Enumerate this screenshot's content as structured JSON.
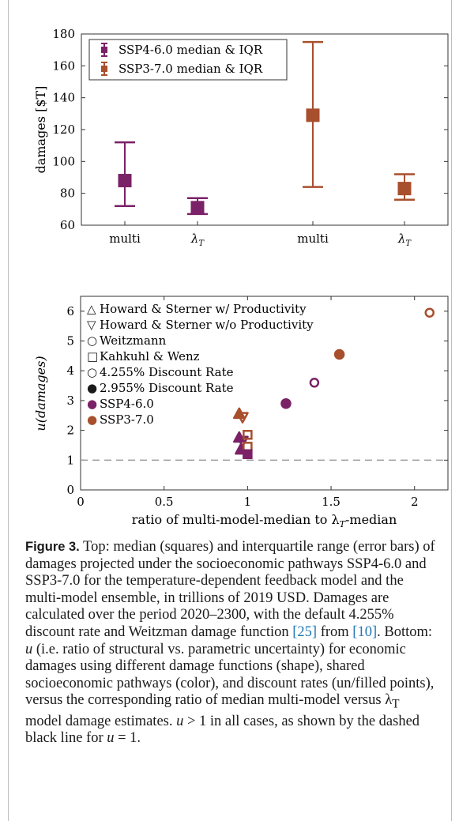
{
  "colors": {
    "ssp4": "#7b2167",
    "ssp3": "#a84f2d",
    "axis": "#333333",
    "dash": "#999999"
  },
  "chart_data": [
    {
      "type": "errorbar",
      "title": "",
      "xlabel": "",
      "ylabel": "damages [$T]",
      "ylim": [
        60,
        180
      ],
      "yticks": [
        60,
        80,
        100,
        120,
        140,
        160,
        180
      ],
      "categories": [
        "multi",
        "λ",
        "multi",
        "λ"
      ],
      "category_sub": [
        "",
        "T",
        "",
        "T"
      ],
      "legend": {
        "placement": "top-left",
        "entries": [
          "SSP4-6.0 median & IQR",
          "SSP3-7.0 median & IQR"
        ]
      },
      "series": [
        {
          "name": "SSP4-6.0 median & IQR",
          "color": "#7b2167",
          "points": [
            {
              "cat": 0,
              "median": 88,
              "q1": 72,
              "q3": 112
            },
            {
              "cat": 1,
              "median": 71,
              "q1": 67,
              "q3": 77
            }
          ]
        },
        {
          "name": "SSP3-7.0 median & IQR",
          "color": "#a84f2d",
          "points": [
            {
              "cat": 2,
              "median": 129,
              "q1": 84,
              "q3": 175
            },
            {
              "cat": 3,
              "median": 83,
              "q1": 76,
              "q3": 92
            }
          ]
        }
      ]
    },
    {
      "type": "scatter",
      "title": "",
      "xlabel_main": "ratio of multi-model-median to λ",
      "xlabel_sub": "T",
      "xlabel_tail": "-median",
      "ylabel": "u(damages)",
      "xlim": [
        0,
        2.2
      ],
      "ylim": [
        0,
        6.5
      ],
      "xticks": [
        "0",
        "0.5",
        "1",
        "1.5",
        "2"
      ],
      "xtick_values": [
        0,
        0.5,
        1,
        1.5,
        2
      ],
      "yticks": [
        "0",
        "1",
        "2",
        "3",
        "4",
        "5",
        "6"
      ],
      "ytick_values": [
        0,
        1,
        2,
        3,
        4,
        5,
        6
      ],
      "reference_line": {
        "y": 1,
        "style": "dashed"
      },
      "legend": {
        "placement": "top-left",
        "entries": [
          {
            "symbol": "△",
            "label": "Howard & Sterner w/ Productivity"
          },
          {
            "symbol": "▽",
            "label": "Howard & Sterner w/o Productivity"
          },
          {
            "symbol": "○",
            "label": "Weitzmann"
          },
          {
            "symbol": "□",
            "label": "Kahkuhl & Wenz"
          },
          {
            "symbol": "○",
            "label": "4.255% Discount Rate"
          },
          {
            "symbol": "●",
            "label": "2.955% Discount Rate"
          },
          {
            "symbol": "●",
            "label": "SSP4-6.0",
            "color": "#7b2167"
          },
          {
            "symbol": "●",
            "label": "SSP3-7.0",
            "color": "#a84f2d"
          }
        ]
      },
      "points": [
        {
          "x": 0.95,
          "y": 2.55,
          "shape": "triangle-up",
          "filled": true,
          "color": "#a84f2d"
        },
        {
          "x": 0.97,
          "y": 2.45,
          "shape": "triangle-down",
          "filled": false,
          "color": "#a84f2d"
        },
        {
          "x": 0.95,
          "y": 1.75,
          "shape": "triangle-up",
          "filled": true,
          "color": "#7b2167"
        },
        {
          "x": 0.97,
          "y": 1.65,
          "shape": "triangle-down",
          "filled": false,
          "color": "#7b2167"
        },
        {
          "x": 0.96,
          "y": 1.35,
          "shape": "triangle-up",
          "filled": true,
          "color": "#7b2167"
        },
        {
          "x": 1.0,
          "y": 1.85,
          "shape": "square",
          "filled": false,
          "color": "#a84f2d"
        },
        {
          "x": 1.0,
          "y": 1.45,
          "shape": "square",
          "filled": false,
          "color": "#a84f2d"
        },
        {
          "x": 1.0,
          "y": 1.2,
          "shape": "square",
          "filled": true,
          "color": "#7b2167"
        },
        {
          "x": 1.23,
          "y": 2.9,
          "shape": "circle",
          "filled": true,
          "color": "#7b2167"
        },
        {
          "x": 1.4,
          "y": 3.6,
          "shape": "circle",
          "filled": false,
          "color": "#7b2167"
        },
        {
          "x": 1.55,
          "y": 4.55,
          "shape": "circle",
          "filled": true,
          "color": "#a84f2d"
        },
        {
          "x": 2.09,
          "y": 5.95,
          "shape": "circle",
          "filled": false,
          "color": "#a84f2d"
        }
      ]
    }
  ],
  "caption": {
    "lead": "Figure 3.",
    "part1": " Top: median (squares) and interquartile range (error bars) of damages projected under the socioeconomic pathways SSP4-6.0 and SSP3-7.0 for the temperature-dependent feedback model and the multi-model ensemble, in trillions of 2019 USD. Damages are calculated over the period 2020–2300, with the default 4.255% discount rate and Weitzman damage function ",
    "ref1": "[25]",
    "part2": " from ",
    "ref2": "[10]",
    "part3": ". Bottom: ",
    "u1": "u",
    "part4": " (i.e. ratio of structural vs. parametric uncertainty) for economic damages using different damage functions (shape), shared socioeconomic pathways (color), and discount rates (un/filled points), versus the corresponding ratio of median multi-model versus λ",
    "sub": "T",
    "part5": " model damage estimates. ",
    "u2": "u",
    "part6": " > 1 in all cases, as shown by the dashed black line for ",
    "u3": "u",
    "part7": " = 1."
  }
}
